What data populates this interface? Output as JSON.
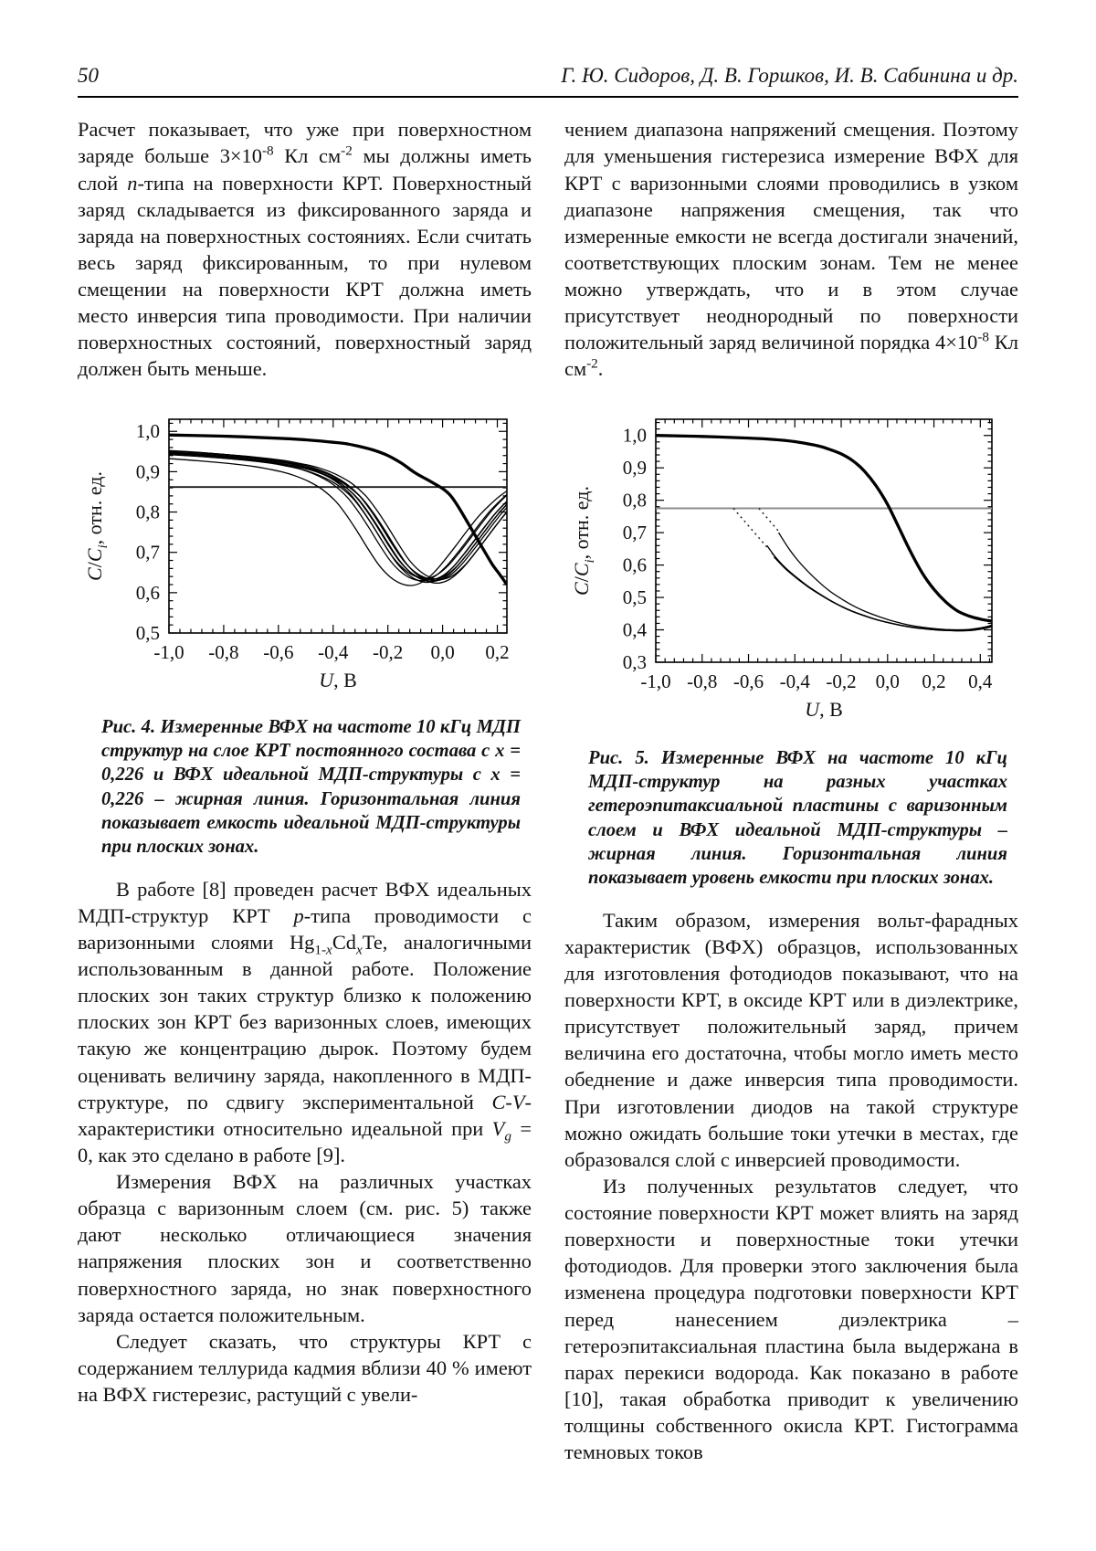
{
  "header": {
    "page_number": "50",
    "authors": "Г. Ю. Сидоров, Д. В. Горшков, И. В. Сабинина и др."
  },
  "left_column": {
    "paragraphs": [
      "Расчет показывает, что уже при поверхностном заряде больше 3×10^{-8} Кл см^{-2} мы должны иметь слой *n*-типа на поверхности КРТ. Поверхностный заряд складывается из фиксированного заряда и заряда на поверхностных состояниях. Если считать весь заряд фиксированным, то при нулевом смещении на поверхности КРТ должна иметь место инверсия типа проводимости. При наличии поверхностных состояний, поверхностный заряд должен быть меньше.",
      "В работе [8] проведен расчет ВФХ идеальных МДП-структур КРТ *p*-типа проводимости с варизонными слоями Hg_{1-*x*}Cd_{*x*}Te, аналогичными использованным в данной работе. Положение плоских зон таких структур близко к положению плоских зон КРТ без варизонных слоев, имеющих такую же концентрацию дырок. Поэтому будем оценивать величину заряда, накопленного в МДП-структуре, по сдвигу экспериментальной *C*-*V*-характеристики относительно идеальной при *V*_{*g*} = 0, как это сделано в работе [9].",
      "Измерения ВФХ на различных участках образца с варизонным слоем (см. рис. 5) также дают несколько отличающиеся значения напряжения плоских зон и соответственно поверхностного заряда, но знак поверхностного заряда остается положительным.",
      "Следует сказать, что структуры КРТ с содержанием теллурида кадмия вблизи 40 % имеют на ВФХ гистерезис, растущий с увели-"
    ]
  },
  "right_column": {
    "paragraphs": [
      "чением диапазона напряжений смещения. Поэтому для уменьшения гистерезиса измерение ВФХ для КРТ с варизонными слоями проводились в узком диапазоне напряжения смещения, так что измеренные емкости не всегда достигали значений, соответствующих плоским зонам. Тем не менее можно утверждать, что и в этом случае присутствует неоднородный по поверхности положительный заряд величиной порядка 4×10^{-8} Кл см^{-2}.",
      "Таким образом, измерения вольт-фарадных характеристик (ВФХ) образцов, использованных для изготовления фотодиодов показывают, что на поверхности КРТ, в оксиде КРТ или в диэлектрике, присутствует положительный заряд, причем величина его достаточна, чтобы могло иметь место обеднение и даже инверсия типа проводимости. При изготовлении диодов на такой структуре можно ожидать большие токи утечки в местах, где образовался слой с инверсией проводимости.",
      "Из полученных результатов следует, что состояние поверхности КРТ может влиять на заряд поверхности и поверхностные токи утечки фотодиодов. Для проверки этого заключения была изменена процедура подготовки поверхности КРТ перед нанесением диэлектрика – гетероэпитаксиальная пластина была выдержана в парах перекиси водорода. Как показано в работе [10], такая обработка приводит к увеличению толщины собственного окисла КРТ. Гистограмма темновых токов"
    ]
  },
  "figures": {
    "fig4": {
      "caption": "Рис. 4. Измеренные ВФХ на частоте 10 кГц МДП структур на слое КРТ постоянного состава с x = 0,226 и ВФХ идеальной МДП-структуры с x = 0,226 – жирная линия. Горизонтальная линия показывает емкость идеальной МДП-структуры при плоских зонах."
    },
    "fig5": {
      "caption": "Рис. 5. Измеренные ВФХ на частоте 10 кГц МДП-структур на разных участках гетероэпитаксиальной пластины с варизонным слоем и ВФХ идеальной МДП-структуры – жирная линия. Горизонтальная линия показывает уровень емкости при плоских зонах."
    }
  },
  "chart_data": [
    {
      "id": "fig4",
      "type": "line",
      "title": "",
      "xlabel": "*U*, В",
      "ylabel": "*C*/*C*_{*i*}, отн. ед.",
      "xlim": [
        -1.0,
        0.235
      ],
      "ylim": [
        0.5,
        1.03
      ],
      "xticks": [
        -1.0,
        -0.8,
        -0.6,
        -0.4,
        -0.2,
        0.0,
        0.2
      ],
      "xtick_labels": [
        "-1,0",
        "-0,8",
        "-0,6",
        "-0,4",
        "-0,2",
        "0,0",
        "0,2"
      ],
      "yticks": [
        0.5,
        0.6,
        0.7,
        0.8,
        0.9,
        1.0
      ],
      "ytick_labels": [
        "0,5",
        "0,6",
        "0,7",
        "0,8",
        "0,9",
        "1,0"
      ],
      "minor_per_major": 5,
      "grid": false,
      "legend": null,
      "flat_band_level": 0.862,
      "flat_band_color": "#1a1a1a",
      "ideal_curve": [
        [
          -1.05,
          0.992
        ],
        [
          -1.0,
          0.991
        ],
        [
          -0.8,
          0.988
        ],
        [
          -0.6,
          0.983
        ],
        [
          -0.5,
          0.979
        ],
        [
          -0.4,
          0.973
        ],
        [
          -0.35,
          0.969
        ],
        [
          -0.3,
          0.962
        ],
        [
          -0.25,
          0.953
        ],
        [
          -0.2,
          0.94
        ],
        [
          -0.15,
          0.921
        ],
        [
          -0.1,
          0.897
        ],
        [
          -0.05,
          0.878
        ],
        [
          0.0,
          0.858
        ],
        [
          0.03,
          0.84
        ],
        [
          0.06,
          0.81
        ],
        [
          0.1,
          0.764
        ],
        [
          0.14,
          0.718
        ],
        [
          0.18,
          0.672
        ],
        [
          0.21,
          0.644
        ],
        [
          0.235,
          0.62
        ]
      ],
      "measured": {
        "base": [
          [
            -1.1,
            0.951
          ],
          [
            -1.0,
            0.948
          ],
          [
            -0.9,
            0.944
          ],
          [
            -0.8,
            0.939
          ],
          [
            -0.7,
            0.933
          ],
          [
            -0.6,
            0.925
          ],
          [
            -0.55,
            0.919
          ],
          [
            -0.5,
            0.912
          ],
          [
            -0.45,
            0.902
          ],
          [
            -0.4,
            0.888
          ],
          [
            -0.35,
            0.868
          ],
          [
            -0.3,
            0.838
          ],
          [
            -0.26,
            0.803
          ],
          [
            -0.22,
            0.762
          ],
          [
            -0.18,
            0.718
          ],
          [
            -0.14,
            0.678
          ],
          [
            -0.1,
            0.65
          ],
          [
            -0.06,
            0.634
          ],
          [
            -0.02,
            0.63
          ],
          [
            0.02,
            0.64
          ],
          [
            0.06,
            0.663
          ],
          [
            0.1,
            0.695
          ],
          [
            0.14,
            0.73
          ],
          [
            0.18,
            0.766
          ],
          [
            0.22,
            0.8
          ],
          [
            0.26,
            0.828
          ],
          [
            0.3,
            0.852
          ],
          [
            0.35,
            0.876
          ]
        ],
        "x_offsets": [
          -0.09,
          -0.05,
          -0.037,
          -0.028,
          -0.02,
          -0.013,
          -0.006,
          0.0,
          0.008,
          0.018
        ],
        "y_jitter": [
          -0.012,
          0.0,
          0.006,
          -0.004,
          0.002,
          -0.002,
          0.004,
          0.0,
          -0.006,
          0.003
        ]
      }
    },
    {
      "id": "fig5",
      "type": "line",
      "title": "",
      "xlabel": "*U*, В",
      "ylabel": "*C*/*C*_{*i*}, отн. ед.",
      "xlim": [
        -1.0,
        0.45
      ],
      "ylim": [
        0.3,
        1.05
      ],
      "xticks": [
        -1.0,
        -0.8,
        -0.6,
        -0.4,
        -0.2,
        0.0,
        0.2,
        0.4
      ],
      "xtick_labels": [
        "-1,0",
        "-0,8",
        "-0,6",
        "-0,4",
        "-0,2",
        "0,0",
        "0,2",
        "0,4"
      ],
      "yticks": [
        0.3,
        0.4,
        0.5,
        0.6,
        0.7,
        0.8,
        0.9,
        1.0
      ],
      "ytick_labels": [
        "0,3",
        "0,4",
        "0,5",
        "0,6",
        "0,7",
        "0,8",
        "0,9",
        "1,0"
      ],
      "minor_per_major": 5,
      "grid": false,
      "legend": null,
      "flat_band_level": 0.775,
      "flat_band_color": "#8c8c8c",
      "ideal_curve": [
        [
          -1.0,
          1.0
        ],
        [
          -0.8,
          0.997
        ],
        [
          -0.6,
          0.992
        ],
        [
          -0.5,
          0.988
        ],
        [
          -0.4,
          0.981
        ],
        [
          -0.3,
          0.968
        ],
        [
          -0.25,
          0.957
        ],
        [
          -0.2,
          0.943
        ],
        [
          -0.15,
          0.922
        ],
        [
          -0.1,
          0.89
        ],
        [
          -0.05,
          0.845
        ],
        [
          0.0,
          0.787
        ],
        [
          0.05,
          0.714
        ],
        [
          0.1,
          0.64
        ],
        [
          0.15,
          0.575
        ],
        [
          0.2,
          0.525
        ],
        [
          0.25,
          0.487
        ],
        [
          0.3,
          0.459
        ],
        [
          0.35,
          0.443
        ],
        [
          0.4,
          0.433
        ],
        [
          0.45,
          0.427
        ]
      ],
      "measured_series": [
        [
          [
            -0.52,
            0.66
          ],
          [
            -0.47,
            0.612
          ],
          [
            -0.42,
            0.578
          ],
          [
            -0.37,
            0.549
          ],
          [
            -0.32,
            0.523
          ],
          [
            -0.27,
            0.5
          ],
          [
            -0.22,
            0.48
          ],
          [
            -0.17,
            0.462
          ],
          [
            -0.12,
            0.448
          ],
          [
            -0.07,
            0.436
          ],
          [
            -0.02,
            0.426
          ],
          [
            0.03,
            0.418
          ],
          [
            0.08,
            0.411
          ],
          [
            0.13,
            0.406
          ],
          [
            0.18,
            0.402
          ],
          [
            0.23,
            0.4
          ],
          [
            0.28,
            0.398
          ],
          [
            0.33,
            0.398
          ],
          [
            0.38,
            0.401
          ],
          [
            0.42,
            0.408
          ],
          [
            0.45,
            0.415
          ]
        ],
        [
          [
            -0.5,
            0.638
          ],
          [
            -0.45,
            0.598
          ],
          [
            -0.4,
            0.566
          ],
          [
            -0.35,
            0.538
          ],
          [
            -0.3,
            0.514
          ],
          [
            -0.25,
            0.492
          ],
          [
            -0.2,
            0.473
          ],
          [
            -0.15,
            0.457
          ],
          [
            -0.1,
            0.444
          ],
          [
            -0.05,
            0.432
          ],
          [
            0.0,
            0.423
          ],
          [
            0.05,
            0.415
          ],
          [
            0.1,
            0.409
          ],
          [
            0.15,
            0.404
          ],
          [
            0.2,
            0.4
          ],
          [
            0.25,
            0.398
          ],
          [
            0.3,
            0.397
          ],
          [
            0.35,
            0.398
          ],
          [
            0.4,
            0.402
          ],
          [
            0.45,
            0.41
          ]
        ],
        [
          [
            -0.49,
            0.625
          ],
          [
            -0.44,
            0.588
          ],
          [
            -0.39,
            0.558
          ],
          [
            -0.34,
            0.531
          ],
          [
            -0.29,
            0.508
          ],
          [
            -0.24,
            0.487
          ],
          [
            -0.19,
            0.469
          ],
          [
            -0.14,
            0.454
          ],
          [
            -0.09,
            0.441
          ],
          [
            -0.04,
            0.43
          ],
          [
            0.01,
            0.421
          ],
          [
            0.06,
            0.413
          ],
          [
            0.11,
            0.407
          ],
          [
            0.16,
            0.403
          ],
          [
            0.21,
            0.4
          ],
          [
            0.26,
            0.398
          ],
          [
            0.31,
            0.397
          ],
          [
            0.36,
            0.398
          ],
          [
            0.41,
            0.403
          ],
          [
            0.45,
            0.409
          ]
        ],
        [
          [
            -0.47,
            0.7
          ],
          [
            -0.43,
            0.655
          ],
          [
            -0.39,
            0.617
          ],
          [
            -0.35,
            0.585
          ],
          [
            -0.3,
            0.55
          ],
          [
            -0.25,
            0.52
          ],
          [
            -0.2,
            0.496
          ],
          [
            -0.15,
            0.475
          ],
          [
            -0.1,
            0.458
          ],
          [
            -0.05,
            0.444
          ],
          [
            0.0,
            0.432
          ],
          [
            0.05,
            0.422
          ],
          [
            0.1,
            0.414
          ],
          [
            0.15,
            0.408
          ],
          [
            0.2,
            0.404
          ],
          [
            0.25,
            0.401
          ],
          [
            0.3,
            0.4
          ],
          [
            0.35,
            0.401
          ],
          [
            0.4,
            0.406
          ],
          [
            0.45,
            0.413
          ]
        ]
      ],
      "dotted_segments": [
        [
          [
            -0.665,
            0.775
          ],
          [
            -0.52,
            0.655
          ]
        ],
        [
          [
            -0.555,
            0.775
          ],
          [
            -0.465,
            0.7
          ]
        ]
      ]
    }
  ]
}
